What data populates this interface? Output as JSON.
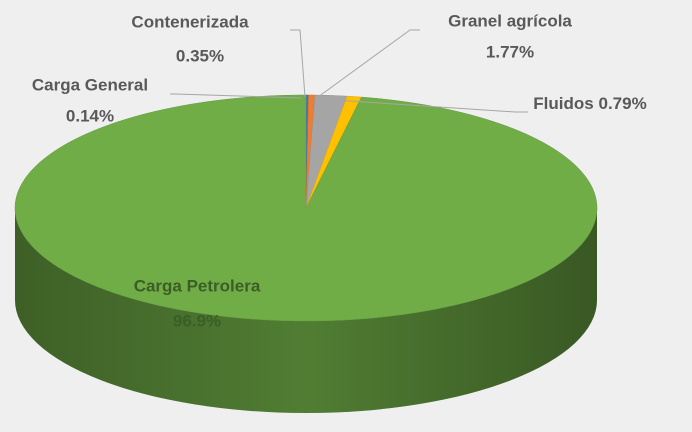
{
  "chart_data": {
    "type": "pie3d",
    "categories": [
      "Carga General",
      "Contenerizada",
      "Granel agrícola",
      "Fluidos",
      "Carga Petrolera"
    ],
    "values": [
      0.14,
      0.35,
      1.77,
      0.79,
      96.9
    ],
    "value_labels": [
      "0.14%",
      "0.35%",
      "1.77%",
      "0.79%",
      "96.9%"
    ],
    "colors": [
      "#4472c4",
      "#ed7d31",
      "#a5a5a5",
      "#ffc000",
      "#70ad47"
    ]
  }
}
